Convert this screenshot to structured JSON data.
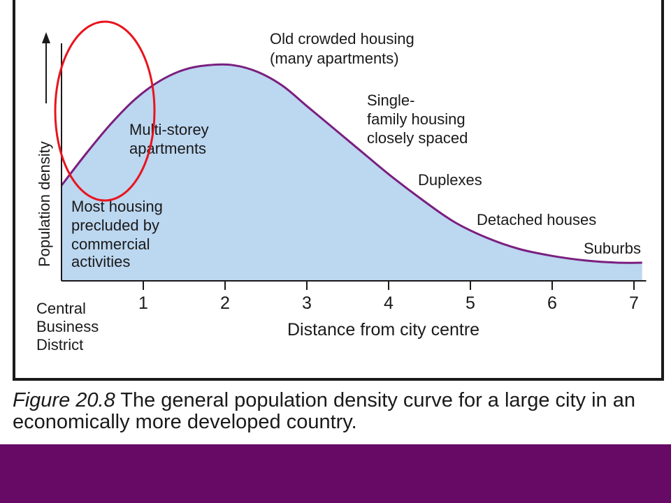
{
  "chart_data": {
    "type": "area",
    "xlabel": "Distance from city centre",
    "ylabel": "Population density",
    "xlim": [
      0,
      7.15
    ],
    "ylim": [
      0,
      10
    ],
    "x_ticks": [
      1,
      2,
      3,
      4,
      5,
      6,
      7
    ],
    "origin_label": [
      "Central",
      "Business",
      "District"
    ],
    "grid": false,
    "curve_color": "#7a1f7f",
    "fill_color": "#bcd7f0",
    "series": [
      {
        "x": [
          0,
          0.3,
          0.6,
          0.9,
          1.2,
          1.5,
          1.8,
          2.1,
          2.4,
          2.7,
          3.0,
          3.3,
          3.6,
          4.0,
          4.4,
          4.8,
          5.2,
          5.6,
          6.0,
          6.4,
          6.8,
          7.1
        ],
        "y": [
          4.2,
          5.6,
          6.9,
          8.0,
          8.8,
          9.3,
          9.5,
          9.5,
          9.2,
          8.6,
          7.7,
          6.8,
          5.9,
          4.7,
          3.6,
          2.6,
          1.9,
          1.4,
          1.1,
          0.9,
          0.8,
          0.8
        ]
      }
    ],
    "annotations": [
      {
        "lines": [
          "Most housing",
          "precluded by",
          "commercial",
          "activities"
        ]
      },
      {
        "lines": [
          "Multi-storey",
          "apartments"
        ]
      },
      {
        "lines": [
          "Old crowded housing",
          "(many apartments)"
        ]
      },
      {
        "lines": [
          "Single-",
          "family housing",
          "closely spaced"
        ]
      },
      {
        "lines": [
          "Duplexes"
        ]
      },
      {
        "lines": [
          "Detached houses"
        ]
      },
      {
        "lines": [
          "Suburbs"
        ]
      }
    ]
  },
  "caption": {
    "figure_ref": "Figure 20.8",
    "text": "The general population density curve for a large city in an economically more developed country."
  },
  "highlight_color": "#e8141e",
  "band_color": "#660a66"
}
